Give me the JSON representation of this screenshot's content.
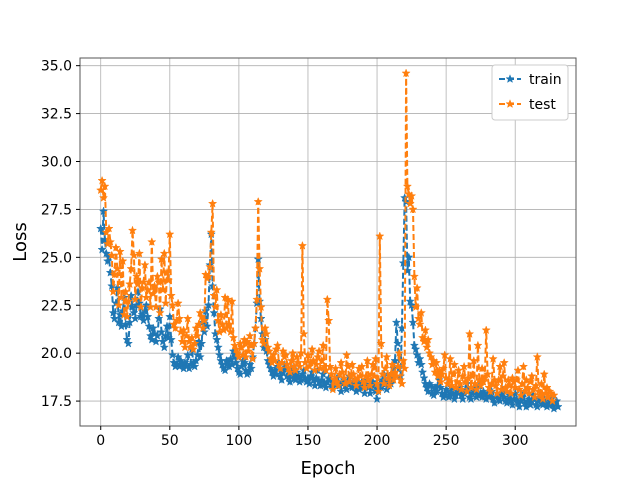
{
  "chart_data": {
    "type": "line",
    "title": "",
    "xlabel": "Epoch",
    "ylabel": "Loss",
    "xlim": [
      -15,
      344
    ],
    "ylim": [
      16.2,
      35.4
    ],
    "xticks": [
      0,
      50,
      100,
      150,
      200,
      250,
      300
    ],
    "yticks": [
      17.5,
      20.0,
      22.5,
      25.0,
      27.5,
      30.0,
      32.5,
      35.0
    ],
    "ytick_labels": [
      "17.5",
      "20.0",
      "22.5",
      "25.0",
      "27.5",
      "30.0",
      "32.5",
      "35.0"
    ],
    "grid": true,
    "legend": "top-right",
    "colors": {
      "train": "#1f77b4",
      "test": "#ff7f0e",
      "grid": "#b0b0b0",
      "axes": "#555555"
    },
    "x_start": 0,
    "series": [
      {
        "name": "train",
        "values": [
          26.5,
          25.4,
          27.4,
          25.9,
          25.2,
          24.8,
          25.0,
          24.2,
          23.5,
          22.1,
          21.8,
          22.6,
          23.4,
          21.6,
          22.0,
          21.4,
          22.2,
          22.9,
          21.5,
          20.7,
          20.5,
          21.6,
          23.0,
          22.4,
          22.1,
          21.8,
          22.5,
          23.2,
          22.6,
          21.9,
          22.0,
          21.7,
          22.2,
          22.5,
          21.9,
          21.4,
          20.9,
          20.7,
          21.3,
          21.0,
          20.6,
          20.9,
          21.8,
          22.3,
          21.1,
          20.6,
          20.3,
          20.9,
          21.4,
          20.8,
          21.9,
          20.7,
          19.9,
          19.5,
          19.3,
          19.4,
          19.8,
          19.3,
          19.6,
          19.4,
          19.2,
          19.5,
          19.3,
          19.9,
          19.2,
          19.4,
          20.2,
          19.5,
          19.3,
          19.6,
          19.9,
          20.6,
          19.8,
          20.5,
          21.6,
          21.1,
          22.2,
          21.4,
          22.5,
          24.6,
          26.2,
          23.5,
          22.1,
          21.0,
          20.7,
          20.3,
          19.9,
          19.6,
          19.4,
          19.2,
          19.1,
          19.6,
          19.5,
          19.3,
          19.7,
          19.4,
          20.1,
          19.8,
          19.5,
          19.2,
          19.0,
          18.9,
          19.3,
          19.6,
          19.5,
          19.1,
          18.9,
          19.0,
          19.4,
          19.2,
          19.8,
          20.5,
          21.3,
          22.6,
          24.9,
          22.7,
          21.8,
          21.0,
          20.3,
          20.7,
          20.1,
          19.6,
          19.4,
          19.2,
          19.0,
          18.8,
          19.1,
          18.9,
          19.3,
          19.5,
          18.8,
          18.6,
          19.0,
          19.4,
          19.2,
          18.8,
          18.7,
          18.5,
          18.9,
          19.2,
          18.7,
          18.6,
          19.0,
          18.8,
          18.5,
          18.6,
          18.9,
          19.1,
          18.7,
          18.5,
          18.7,
          18.4,
          18.8,
          19.0,
          18.6,
          18.3,
          18.7,
          19.1,
          18.5,
          18.3,
          18.6,
          18.9,
          18.4,
          18.2,
          18.5,
          18.7,
          18.6,
          18.3,
          18.2,
          18.5,
          18.4,
          18.7,
          18.5,
          18.3,
          18.0,
          18.4,
          18.6,
          18.3,
          18.1,
          18.5,
          18.8,
          18.4,
          18.2,
          18.5,
          18.3,
          18.0,
          18.4,
          18.1,
          18.3,
          18.5,
          18.2,
          17.9,
          18.3,
          18.6,
          18.2,
          17.9,
          18.2,
          18.5,
          18.3,
          18.0,
          17.6,
          18.1,
          18.4,
          18.2,
          18.6,
          18.9,
          18.4,
          18.1,
          18.5,
          18.8,
          18.4,
          18.6,
          19.2,
          19.6,
          21.6,
          20.5,
          19.2,
          18.8,
          21.3,
          24.7,
          28.1,
          27.9,
          24.3,
          25.0,
          22.7,
          22.5,
          21.6,
          20.4,
          20.2,
          19.9,
          19.5,
          19.7,
          19.4,
          19.0,
          18.7,
          18.4,
          18.2,
          18.0,
          18.4,
          18.3,
          17.9,
          17.8,
          18.2,
          18.0,
          18.3,
          18.6,
          18.2,
          17.9,
          17.7,
          17.8,
          18.1,
          18.0,
          17.7,
          17.8,
          18.2,
          17.9,
          17.6,
          17.8,
          18.0,
          17.9,
          18.2,
          17.8,
          17.6,
          17.9,
          18.1,
          18.4,
          18.0,
          17.7,
          17.6,
          17.9,
          18.2,
          18.0,
          17.7,
          17.8,
          18.3,
          17.9,
          17.7,
          18.0,
          17.8,
          17.6,
          17.9,
          17.7,
          17.8,
          18.0,
          17.6,
          17.4,
          17.7,
          17.9,
          17.6,
          17.5,
          17.8,
          18.1,
          17.7,
          17.5,
          17.4,
          17.6,
          17.8,
          17.5,
          17.3,
          17.6,
          17.9,
          17.6,
          17.4,
          17.2,
          17.5,
          17.7,
          17.9,
          17.4,
          17.2,
          17.5,
          17.6,
          17.3,
          17.5,
          17.8,
          17.6,
          17.3,
          17.2,
          17.5,
          17.7,
          17.4,
          17.3,
          17.6,
          17.4,
          17.2,
          17.3,
          17.5,
          17.6,
          17.3,
          17.1,
          17.4,
          17.5,
          17.2
        ]
      },
      {
        "name": "test",
        "values": [
          28.5,
          29.0,
          28.1,
          28.7,
          26.3,
          25.7,
          26.5,
          25.8,
          25.1,
          23.2,
          24.1,
          25.5,
          24.4,
          22.5,
          25.3,
          22.9,
          24.8,
          22.0,
          23.2,
          21.9,
          22.7,
          23.6,
          24.4,
          26.4,
          25.1,
          22.8,
          24.0,
          23.6,
          25.2,
          22.4,
          23.4,
          23.7,
          24.6,
          22.9,
          23.3,
          23.7,
          22.4,
          25.8,
          23.1,
          23.5,
          22.4,
          24.0,
          23.7,
          22.1,
          24.9,
          23.3,
          25.2,
          22.6,
          24.2,
          23.8,
          26.2,
          23.0,
          22.5,
          21.5,
          21.3,
          21.7,
          22.6,
          21.8,
          21.1,
          20.6,
          21.2,
          20.3,
          20.9,
          21.8,
          20.6,
          20.3,
          20.8,
          20.2,
          20.5,
          21.3,
          20.9,
          21.5,
          22.1,
          21.9,
          21.3,
          21.7,
          24.1,
          23.9,
          24.0,
          24.5,
          26.3,
          27.8,
          23.0,
          22.4,
          23.3,
          21.7,
          21.1,
          22.0,
          21.5,
          21.2,
          22.9,
          21.3,
          22.8,
          21.5,
          21.1,
          22.7,
          20.8,
          20.4,
          20.2,
          20.0,
          19.8,
          20.5,
          20.3,
          19.9,
          20.7,
          19.8,
          20.6,
          20.1,
          20.9,
          20.4,
          19.7,
          20.5,
          21.3,
          22.8,
          27.9,
          24.4,
          22.4,
          20.7,
          20.5,
          21.3,
          21.0,
          20.3,
          20.1,
          19.7,
          19.5,
          19.9,
          19.6,
          20.2,
          20.4,
          19.4,
          19.2,
          19.5,
          20.1,
          19.8,
          19.9,
          19.4,
          19.2,
          19.0,
          19.6,
          20.0,
          19.3,
          19.1,
          19.8,
          19.5,
          19.3,
          20.0,
          25.6,
          21.0,
          19.5,
          19.2,
          19.9,
          19.3,
          19.5,
          20.2,
          19.6,
          19.1,
          19.4,
          19.8,
          20.1,
          19.2,
          19.6,
          20.4,
          19.3,
          19.1,
          22.8,
          21.7,
          19.3,
          18.9,
          18.1,
          18.6,
          19.2,
          18.5,
          18.3,
          18.9,
          19.5,
          19.0,
          18.7,
          18.4,
          19.9,
          19.3,
          18.5,
          18.8,
          19.4,
          18.9,
          18.6,
          18.3,
          18.7,
          19.2,
          18.8,
          19.3,
          18.5,
          18.2,
          18.8,
          19.6,
          18.6,
          18.3,
          18.9,
          19.4,
          18.8,
          19.7,
          18.4,
          18.0,
          26.1,
          20.5,
          18.9,
          18.4,
          19.2,
          19.8,
          18.7,
          18.3,
          18.9,
          19.4,
          18.6,
          19.0,
          18.8,
          19.3,
          20.0,
          18.6,
          18.4,
          19.6,
          19.2,
          34.6,
          28.7,
          28.3,
          27.8,
          28.2,
          27.5,
          24.0,
          22.4,
          23.4,
          21.8,
          21.5,
          22.1,
          20.8,
          20.6,
          21.2,
          20.3,
          20.7,
          20.0,
          19.8,
          19.4,
          19.6,
          19.0,
          19.5,
          18.8,
          19.1,
          18.5,
          18.9,
          19.2,
          19.9,
          18.7,
          18.4,
          18.6,
          19.7,
          18.3,
          18.9,
          19.4,
          18.2,
          18.5,
          19.1,
          18.4,
          18.1,
          18.8,
          19.3,
          18.5,
          18.0,
          18.7,
          21.0,
          18.2,
          18.8,
          19.6,
          18.4,
          18.1,
          20.4,
          18.6,
          18.3,
          19.2,
          18.5,
          18.7,
          21.2,
          18.9,
          18.2,
          18.0,
          18.4,
          19.7,
          18.6,
          18.3,
          17.9,
          18.6,
          19.3,
          18.1,
          18.8,
          19.5,
          18.2,
          18.0,
          18.6,
          18.3,
          17.9,
          18.7,
          18.5,
          18.2,
          18.6,
          19.1,
          18.1,
          17.8,
          18.4,
          19.3,
          18.0,
          18.6,
          18.2,
          17.9,
          18.5,
          18.8,
          18.1,
          17.7,
          18.3,
          19.8,
          18.0,
          17.8,
          18.4,
          17.6,
          18.9,
          17.9,
          18.2,
          17.7,
          18.0,
          17.9,
          17.5,
          17.8
        ]
      }
    ]
  }
}
